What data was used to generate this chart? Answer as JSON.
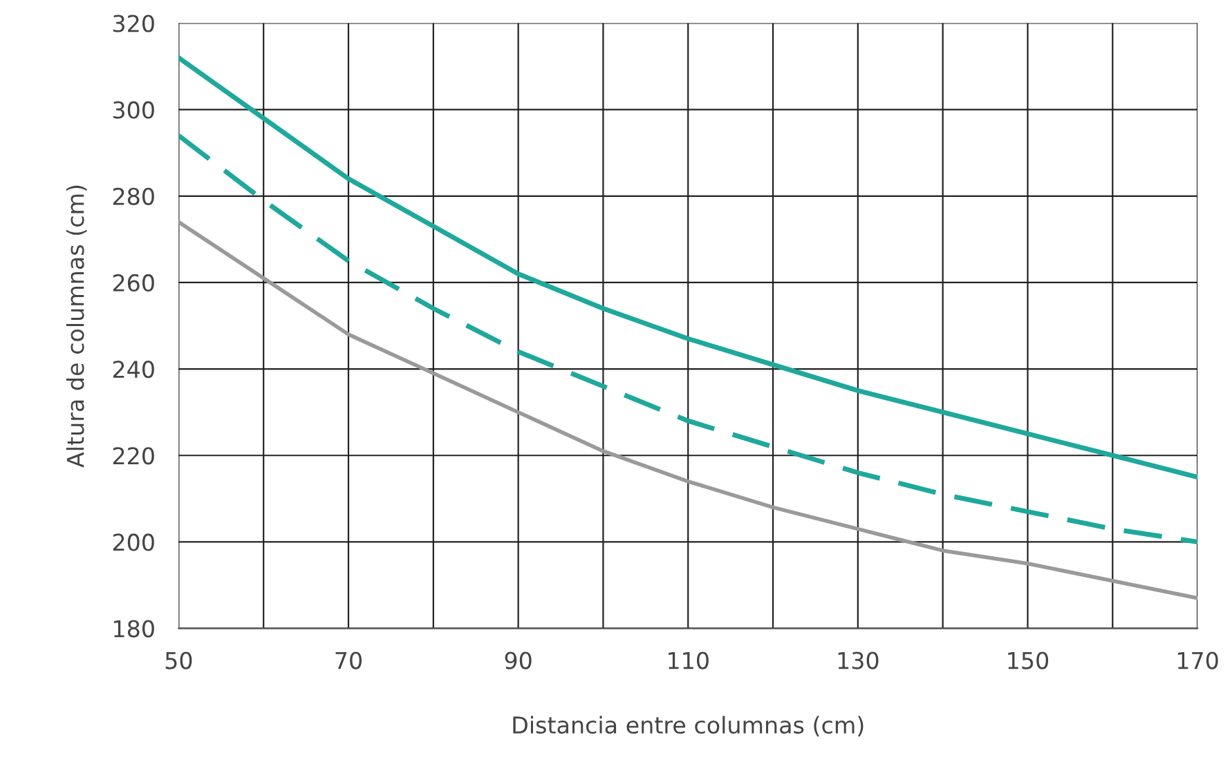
{
  "chart_data": {
    "type": "line",
    "xlabel": "Distancia entre columnas (cm)",
    "ylabel": "Altura de columnas (cm)",
    "x": [
      50,
      60,
      70,
      80,
      90,
      100,
      110,
      120,
      130,
      140,
      150,
      160,
      170
    ],
    "series": [
      {
        "color": "#1fa89c",
        "line_style": "solid",
        "values": [
          312,
          298,
          284,
          273,
          262,
          254,
          247,
          241,
          235,
          230,
          225,
          220,
          215
        ]
      },
      {
        "color": "#1fa89c",
        "line_style": "dashed",
        "values": [
          294,
          279,
          265,
          254,
          244,
          236,
          228,
          222,
          216,
          211,
          207,
          203,
          200
        ]
      },
      {
        "color": "#9a9a9a",
        "line_style": "solid",
        "values": [
          274,
          261,
          248,
          239,
          230,
          221,
          214,
          208,
          203,
          198,
          195,
          191,
          187
        ]
      }
    ],
    "xlim": [
      50,
      170
    ],
    "xticks": [
      50,
      70,
      90,
      110,
      130,
      150,
      170
    ],
    "ylim": [
      180,
      320
    ],
    "yticks": [
      180,
      200,
      220,
      240,
      260,
      280,
      300,
      320
    ],
    "grid": true,
    "marker": "none"
  }
}
